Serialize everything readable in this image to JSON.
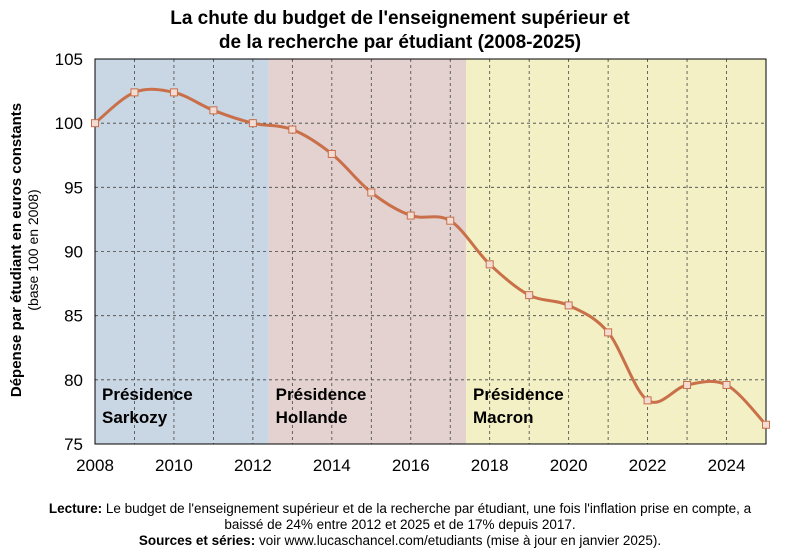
{
  "chart_data": {
    "type": "line",
    "title": "La chute du budget de l'enseignement supérieur et",
    "title_line2": "de la recherche par étudiant (2008-2025)",
    "ylabel": "Dépense par étudiant en euros constants",
    "ylabel_sub": "(base 100 en 2008)",
    "xlabel": "",
    "x": [
      2008,
      2009,
      2010,
      2011,
      2012,
      2013,
      2014,
      2015,
      2016,
      2017,
      2018,
      2019,
      2020,
      2021,
      2022,
      2023,
      2024,
      2025
    ],
    "series": [
      {
        "name": "Dépense par étudiant",
        "values": [
          100.0,
          102.4,
          102.4,
          101.0,
          100.0,
          99.5,
          97.6,
          94.6,
          92.8,
          92.4,
          89.0,
          86.6,
          85.8,
          83.7,
          78.4,
          79.6,
          79.6,
          76.5
        ],
        "color": "#c9704a"
      }
    ],
    "xlim": [
      2008,
      2025
    ],
    "ylim": [
      75,
      105
    ],
    "xticks": [
      2008,
      2010,
      2012,
      2014,
      2016,
      2018,
      2020,
      2022,
      2024
    ],
    "yticks": [
      75,
      80,
      85,
      90,
      95,
      100,
      105
    ],
    "periods": [
      {
        "line1": "Présidence",
        "line2": "Sarkozy",
        "start": 2008,
        "end": 2012.4,
        "color": "#c9d6e3"
      },
      {
        "line1": "Présidence",
        "line2": "Hollande",
        "start": 2012.4,
        "end": 2017.4,
        "color": "#e4d2d1"
      },
      {
        "line1": "Présidence",
        "line2": "Macron",
        "start": 2017.4,
        "end": 2025,
        "color": "#f2f0c4"
      }
    ],
    "grid": true
  },
  "footer": {
    "lecture_label": "Lecture:",
    "lecture_text1": " Le budget de l'enseignement supérieur et de la recherche par étudiant, une fois l'inflation prise en compte, a",
    "lecture_text2": "baissé de 24% entre 2012 et 2025 et de 17% depuis 2017.",
    "sources_label": "Sources et séries:",
    "sources_text": " voir www.lucaschancel.com/etudiants (mise à jour en janvier 2025)."
  }
}
